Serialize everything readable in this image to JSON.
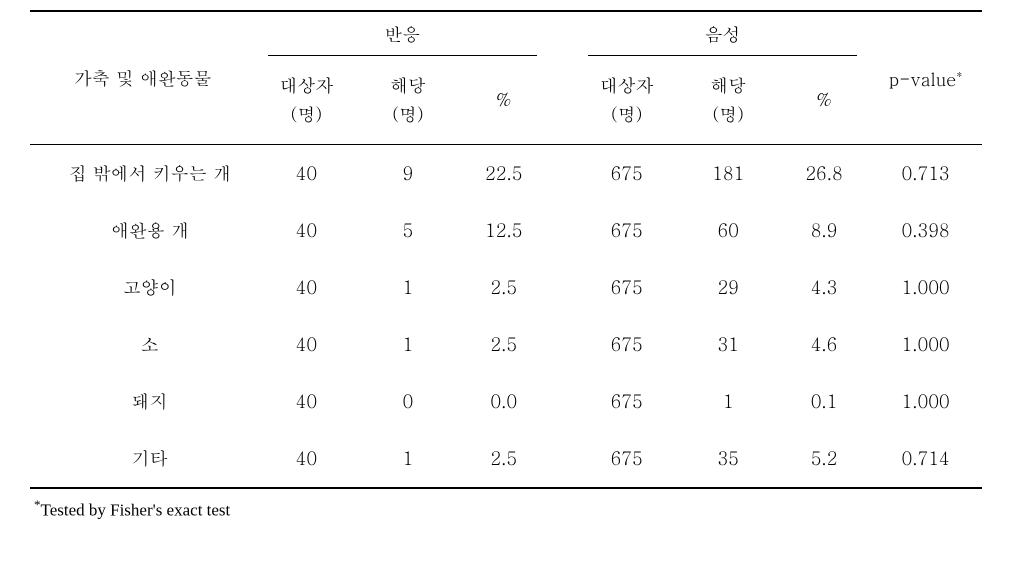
{
  "table": {
    "header": {
      "rowLabel": "가축 및 애완동물",
      "group1": "반응",
      "group2": "음성",
      "sub1": "대상자\n(명)",
      "sub2": "해당\n(명)",
      "sub3": "%",
      "sub4": "대상자\n(명)",
      "sub5": "해당\n(명)",
      "sub6": "%",
      "pvalue": "p-value",
      "pvalueSup": "*"
    },
    "rows": [
      {
        "label": "집 밖에서 키우는 개",
        "g1_n": "40",
        "g1_c": "9",
        "g1_p": "22.5",
        "g2_n": "675",
        "g2_c": "181",
        "g2_p": "26.8",
        "pval": "0.713"
      },
      {
        "label": "애완용 개",
        "g1_n": "40",
        "g1_c": "5",
        "g1_p": "12.5",
        "g2_n": "675",
        "g2_c": "60",
        "g2_p": "8.9",
        "pval": "0.398"
      },
      {
        "label": "고양이",
        "g1_n": "40",
        "g1_c": "1",
        "g1_p": "2.5",
        "g2_n": "675",
        "g2_c": "29",
        "g2_p": "4.3",
        "pval": "1.000"
      },
      {
        "label": "소",
        "g1_n": "40",
        "g1_c": "1",
        "g1_p": "2.5",
        "g2_n": "675",
        "g2_c": "31",
        "g2_p": "4.6",
        "pval": "1.000"
      },
      {
        "label": "돼지",
        "g1_n": "40",
        "g1_c": "0",
        "g1_p": "0.0",
        "g2_n": "675",
        "g2_c": "1",
        "g2_p": "0.1",
        "pval": "1.000"
      },
      {
        "label": "기타",
        "g1_n": "40",
        "g1_c": "1",
        "g1_p": "2.5",
        "g2_n": "675",
        "g2_c": "35",
        "g2_p": "5.2",
        "pval": "0.714"
      }
    ]
  },
  "footnote": {
    "marker": "*",
    "text": "Tested by Fisher's exact test"
  },
  "styling": {
    "background_color": "#ffffff",
    "text_color": "#000000",
    "border_color": "#000000",
    "top_border_width": 2,
    "inner_border_width": 1.5,
    "body_fontsize": 18,
    "header_fontsize": 18,
    "footnote_fontsize": 17,
    "row_padding_vertical": 16,
    "font_family": "Malgun Gothic, Batang, serif"
  }
}
